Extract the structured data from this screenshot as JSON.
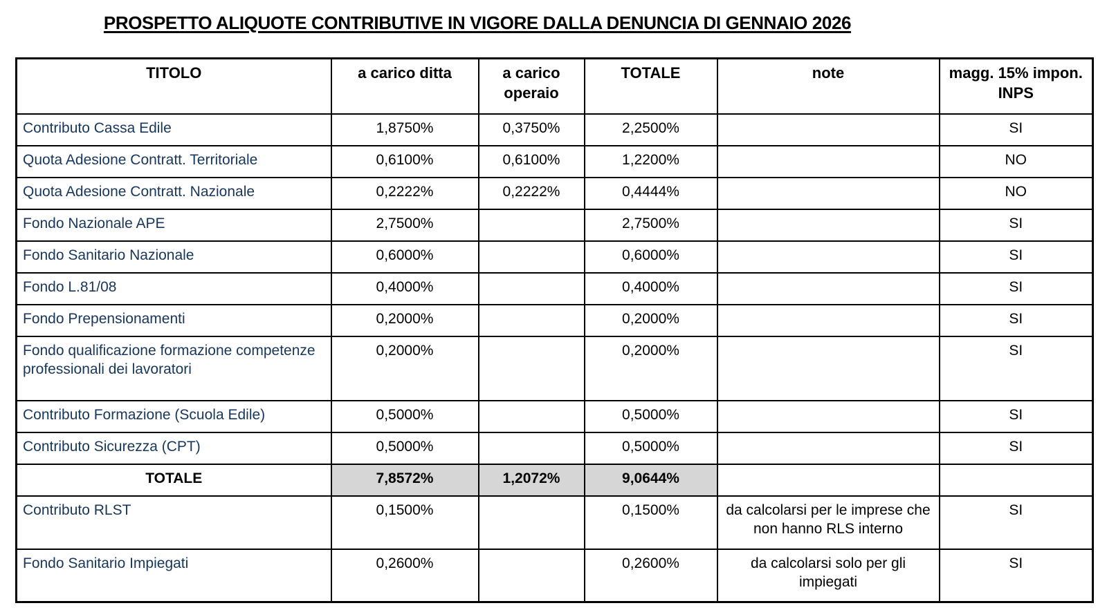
{
  "title": "PROSPETTO ALIQUOTE CONTRIBUTIVE IN VIGORE DALLA DENUNCIA DI GENNAIO 2026",
  "table": {
    "headers": [
      "TITOLO",
      "a carico ditta",
      "a carico operaio",
      "TOTALE",
      "note",
      "magg. 15% impon. INPS"
    ],
    "rows": [
      {
        "titolo": "Contributo Cassa Edile",
        "ditta": "1,8750%",
        "operaio": "0,3750%",
        "totale": "2,2500%",
        "note": "",
        "magg": "SI"
      },
      {
        "titolo": "Quota Adesione Contratt. Territoriale",
        "ditta": "0,6100%",
        "operaio": "0,6100%",
        "totale": "1,2200%",
        "note": "",
        "magg": "NO"
      },
      {
        "titolo": "Quota Adesione Contratt. Nazionale",
        "ditta": "0,2222%",
        "operaio": "0,2222%",
        "totale": "0,4444%",
        "note": "",
        "magg": "NO"
      },
      {
        "titolo": "Fondo Nazionale APE",
        "ditta": "2,7500%",
        "operaio": "",
        "totale": "2,7500%",
        "note": "",
        "magg": "SI"
      },
      {
        "titolo": "Fondo Sanitario Nazionale",
        "ditta": "0,6000%",
        "operaio": "",
        "totale": "0,6000%",
        "note": "",
        "magg": "SI"
      },
      {
        "titolo": "Fondo L.81/08",
        "ditta": "0,4000%",
        "operaio": "",
        "totale": "0,4000%",
        "note": "",
        "magg": "SI"
      },
      {
        "titolo": "Fondo Prepensionamenti",
        "ditta": "0,2000%",
        "operaio": "",
        "totale": "0,2000%",
        "note": "",
        "magg": "SI"
      },
      {
        "titolo": "Fondo qualificazione formazione competenze professionali dei lavoratori",
        "ditta": "0,2000%",
        "operaio": "",
        "totale": "0,2000%",
        "note": "",
        "magg": "SI"
      },
      {
        "titolo": "Contributo Formazione (Scuola Edile)",
        "ditta": "0,5000%",
        "operaio": "",
        "totale": "0,5000%",
        "note": "",
        "magg": "SI"
      },
      {
        "titolo": "Contributo Sicurezza (CPT)",
        "ditta": "0,5000%",
        "operaio": "",
        "totale": "0,5000%",
        "note": "",
        "magg": "SI"
      },
      {
        "titolo": "TOTALE",
        "ditta": "7,8572%",
        "operaio": "1,2072%",
        "totale": "9,0644%",
        "note": "",
        "magg": ""
      },
      {
        "titolo": "Contributo RLST",
        "ditta": "0,1500%",
        "operaio": "",
        "totale": "0,1500%",
        "note": "da calcolarsi per le imprese che non hanno RLS interno",
        "magg": "SI"
      },
      {
        "titolo": "Fondo Sanitario Impiegati",
        "ditta": "0,2600%",
        "operaio": "",
        "totale": "0,2600%",
        "note": "da calcolarsi solo per gli impiegati",
        "magg": "SI"
      }
    ]
  },
  "colors": {
    "row_label_text": "#17365D",
    "totals_cells_bg": "#D6D6D6",
    "table_border": "#000000",
    "page_bg": "#FFFFFF"
  }
}
